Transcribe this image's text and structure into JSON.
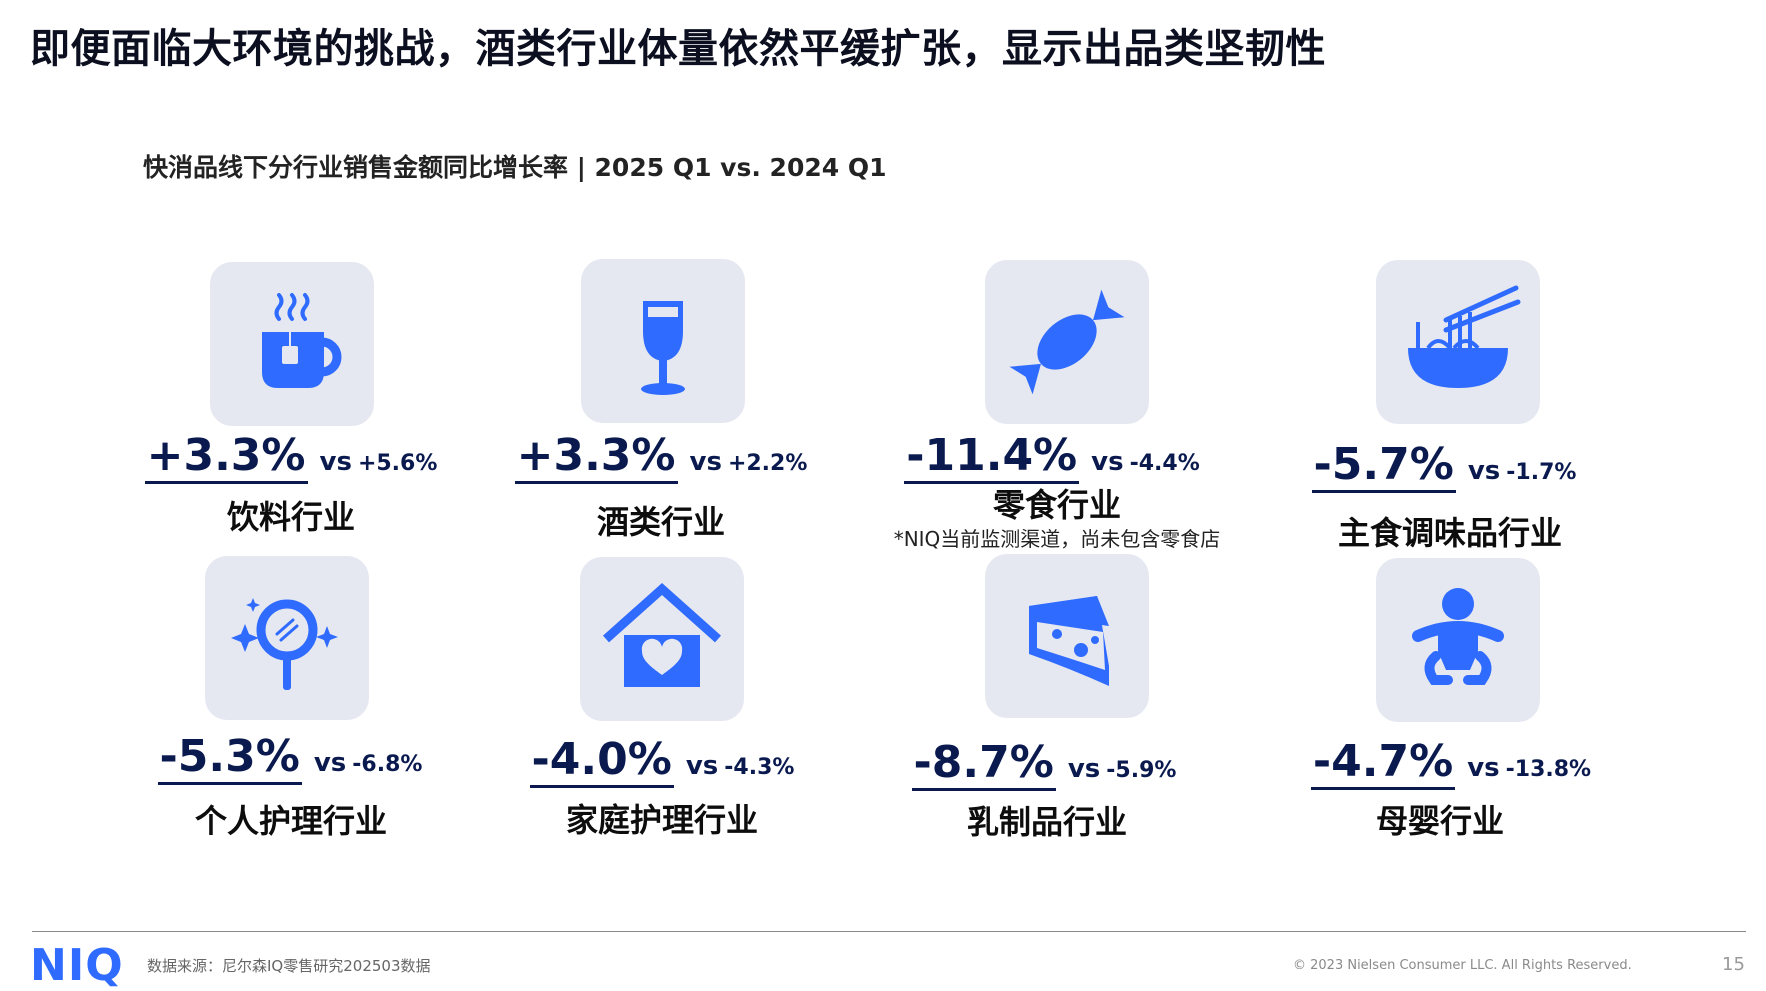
{
  "title": "即便面临大环境的挑战，酒类行业体量依然平缓扩张，显示出品类坚韧性",
  "subtitle": "快消品线下分行业销售金额同比增长率 | 2025 Q1 vs. 2024 Q1",
  "vs_label": "vs",
  "accent_color": "#2f6bff",
  "tile_color": "#e6e8f1",
  "categories": [
    {
      "name": "饮料行业",
      "rate": "+3.3%",
      "compare": "+5.6%",
      "icon": "hot-drink-cup-icon"
    },
    {
      "name": "酒类行业",
      "rate": "+3.3%",
      "compare": "+2.2%",
      "icon": "wine-glass-icon"
    },
    {
      "name": "零食行业",
      "rate": "-11.4%",
      "compare": "-4.4%",
      "icon": "candy-icon",
      "note": "*NIQ当前监测渠道，尚未包含零食店"
    },
    {
      "name": "主食调味品行业",
      "rate": "-5.7%",
      "compare": "-1.7%",
      "icon": "noodle-bowl-icon"
    },
    {
      "name": "个人护理行业",
      "rate": "-5.3%",
      "compare": "-6.8%",
      "icon": "mirror-sparkle-icon"
    },
    {
      "name": "家庭护理行业",
      "rate": "-4.0%",
      "compare": "-4.3%",
      "icon": "house-heart-icon"
    },
    {
      "name": "乳制品行业",
      "rate": "-8.7%",
      "compare": "-5.9%",
      "icon": "cheese-icon"
    },
    {
      "name": "母婴行业",
      "rate": "-4.7%",
      "compare": "-13.8%",
      "icon": "baby-icon"
    }
  ],
  "footer": {
    "logo": "NIQ",
    "source": "数据来源：尼尔森IQ零售研究202503数据",
    "copyright": "© 2023 Nielsen Consumer LLC. All Rights Reserved.",
    "page_number": "15"
  }
}
